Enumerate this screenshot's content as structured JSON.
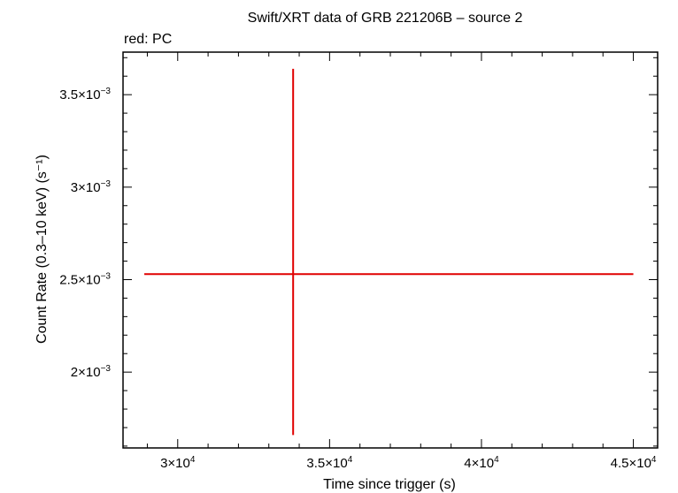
{
  "chart_data": {
    "type": "scatter",
    "title": "Swift/XRT data of GRB 221206B – source 2",
    "subtitle": "red: PC",
    "xlabel": "Time since trigger (s)",
    "ylabel": "Count Rate (0.3–10 keV) (s⁻¹)",
    "xlim": [
      28200,
      45800
    ],
    "ylim": [
      0.00159,
      0.00373
    ],
    "x_ticks": [
      {
        "value": 30000,
        "mant": "3×10",
        "exp": "4"
      },
      {
        "value": 35000,
        "mant": "3.5×10",
        "exp": "4"
      },
      {
        "value": 40000,
        "mant": "4×10",
        "exp": "4"
      },
      {
        "value": 45000,
        "mant": "4.5×10",
        "exp": "4"
      }
    ],
    "y_ticks": [
      {
        "value": 0.002,
        "mant": "2×10",
        "exp": "−3"
      },
      {
        "value": 0.0025,
        "mant": "2.5×10",
        "exp": "−3"
      },
      {
        "value": 0.003,
        "mant": "3×10",
        "exp": "−3"
      },
      {
        "value": 0.0035,
        "mant": "3.5×10",
        "exp": "−3"
      }
    ],
    "series": [
      {
        "name": "PC",
        "color": "#e00000",
        "points": [
          {
            "x": 33800,
            "x_low": 28900,
            "x_high": 45000,
            "y": 0.00253,
            "y_low": 0.00166,
            "y_high": 0.00364
          }
        ]
      }
    ]
  }
}
